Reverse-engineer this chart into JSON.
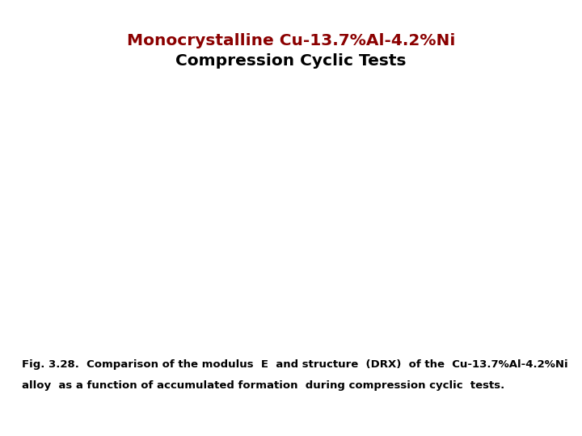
{
  "title_line1": "Monocrystalline Cu-13.7%Al-4.2%Ni",
  "title_line2": "Compression Cyclic Tests",
  "title_line1_color": "#8B0000",
  "title_line2_color": "#000000",
  "caption_line1": "Fig. 3.28.  Comparison of the modulus  E  and structure  (DRX)  of the  Cu-13.7%Al-4.2%Ni",
  "caption_line2": "alloy  as a function of accumulated formation  during compression cyclic  tests.",
  "background_color": "#FFFFFF",
  "title_fontsize": 14.5,
  "caption_fontsize": 9.5
}
